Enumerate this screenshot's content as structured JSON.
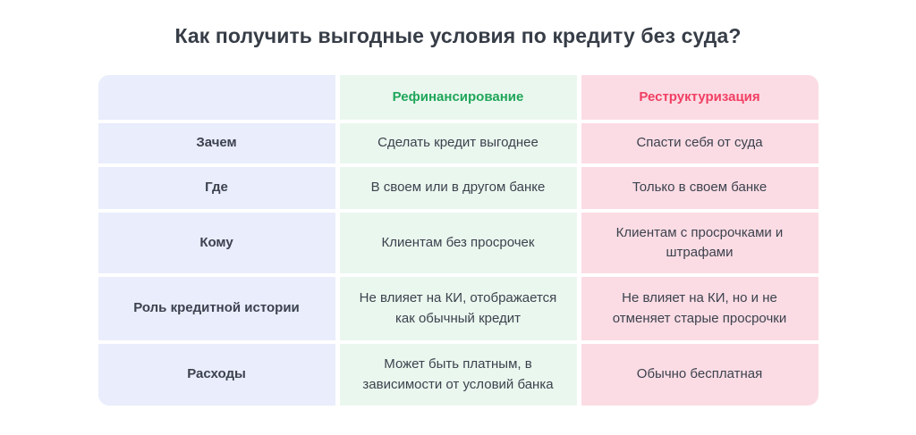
{
  "title": "Как получить выгодные условия по кредиту без суда?",
  "colors": {
    "label_column_bg": "#e9edfc",
    "refinancing_bg": "#eaf7ee",
    "restructuring_bg": "#fbdce4",
    "refinancing_accent": "#1fa65a",
    "restructuring_accent": "#f13e63",
    "title_text": "#373d47",
    "body_text": "#3c424e",
    "page_bg": "#ffffff"
  },
  "chart_data": {
    "type": "table",
    "title": "Как получить выгодные условия по кредиту без суда?",
    "columns": [
      "",
      "Рефинансирование",
      "Реструктуризация"
    ],
    "rows": [
      [
        "Зачем",
        "Сделать кредит выгоднее",
        "Спасти себя от суда"
      ],
      [
        "Где",
        "В своем или в другом банке",
        "Только в своем банке"
      ],
      [
        "Кому",
        "Клиентам без просрочек",
        "Клиентам с просрочками и штрафами"
      ],
      [
        "Роль кредитной истории",
        "Не влияет на КИ, отображается как обычный кредит",
        "Не влияет на КИ, но и не отменяет старые просрочки"
      ],
      [
        "Расходы",
        "Может быть платным, в зависимости от условий банка",
        "Обычно бесплатная"
      ]
    ],
    "layout": {
      "legend": "none",
      "grid": "off",
      "header_row": true,
      "label_column": true
    }
  }
}
